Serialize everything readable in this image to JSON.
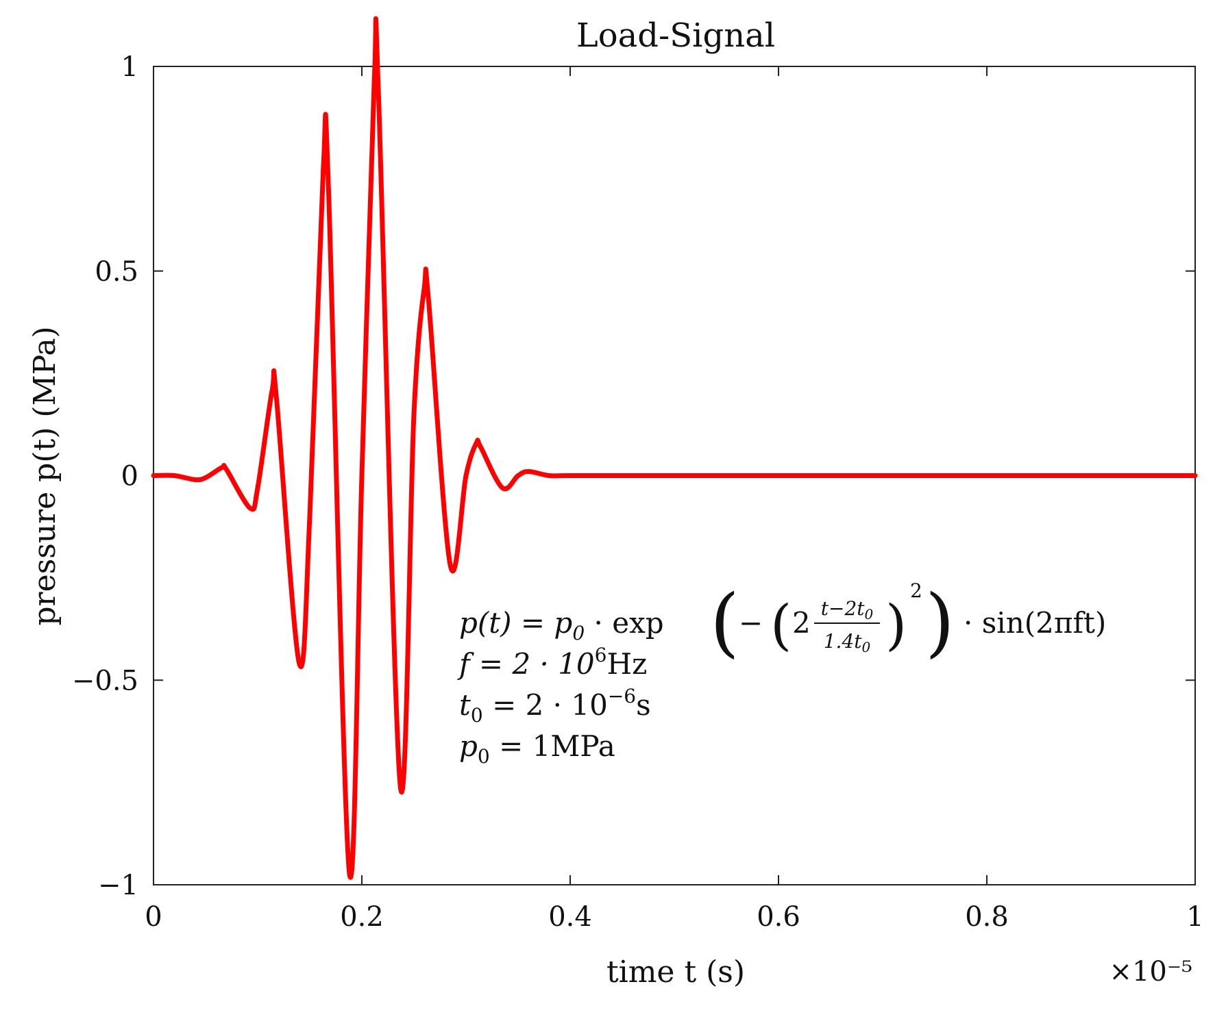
{
  "chart_data": {
    "type": "line",
    "title": "Load-Signal",
    "xlabel": "time t (s)",
    "ylabel": "pressure p(t) (MPa)",
    "x_multiplier": "×10⁻⁵",
    "xlim": [
      0,
      1
    ],
    "ylim": [
      -1,
      1
    ],
    "x_ticks": [
      0,
      0.2,
      0.4,
      0.6,
      0.8,
      1
    ],
    "x_tick_labels": [
      "0",
      "0.2",
      "0.4",
      "0.6",
      "0.8",
      "1"
    ],
    "y_ticks": [
      -1,
      -0.5,
      0,
      0.5,
      1
    ],
    "y_tick_labels": [
      "−1",
      "−0.5",
      "0",
      "0.5",
      "1"
    ],
    "grid": false,
    "series": [
      {
        "color": "#ff0000",
        "x": [
          0,
          0.02,
          0.04,
          0.05,
          0.066,
          0.07,
          0.093,
          0.1,
          0.114,
          0.118,
          0.14,
          0.15,
          0.163,
          0.168,
          0.188,
          0.2,
          0.212,
          0.216,
          0.237,
          0.25,
          0.26,
          0.264,
          0.285,
          0.3,
          0.31,
          0.314,
          0.335,
          0.35,
          0.36,
          0.38,
          0.4,
          0.5,
          0.6,
          0.7,
          0.8,
          0.9,
          1.0
        ],
        "y": [
          0.0,
          0.0,
          -0.01,
          -0.005,
          0.02,
          0.015,
          -0.08,
          -0.03,
          0.21,
          0.19,
          -0.46,
          -0.1,
          0.75,
          0.7,
          -0.97,
          0.0,
          0.97,
          0.93,
          -0.76,
          0.15,
          0.46,
          0.43,
          -0.22,
          0.0,
          0.08,
          0.07,
          -0.03,
          0.0,
          0.01,
          0.0,
          0.0,
          0.0,
          0.0,
          0.0,
          0.0,
          0.0,
          0.0
        ]
      }
    ],
    "annotation": {
      "line1_lhs": "p(t) = p",
      "line1_sub0": "0",
      "line1_mid": " · exp",
      "line1_inner_open": "−",
      "line1_two": "2",
      "line1_frac_num": "t−2t",
      "line1_frac_num_sub": "0",
      "line1_frac_den": "1.4t",
      "line1_frac_den_sub": "0",
      "line1_exp": "2",
      "line1_rhs": "· sin(2πft)",
      "line2": "f = 2 · 10",
      "line2_exp": "6",
      "line2_unit": "Hz",
      "line3_lhs": "t",
      "line3_sub": "0",
      "line3_mid": " = 2 · 10",
      "line3_exp": "−6",
      "line3_unit": "s",
      "line4_lhs": "p",
      "line4_sub": "0",
      "line4_rhs": " = 1MPa"
    }
  }
}
